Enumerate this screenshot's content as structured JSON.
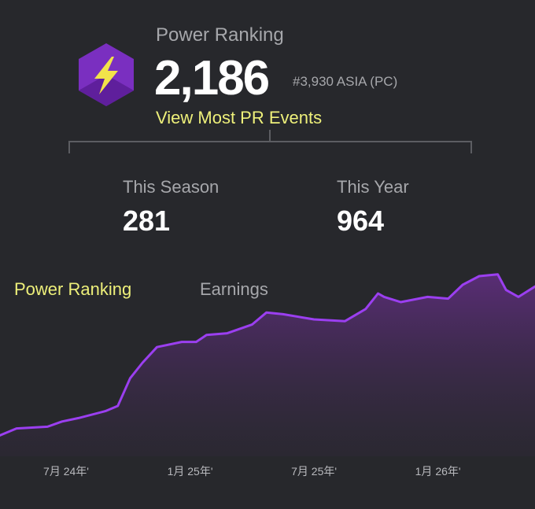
{
  "header": {
    "title": "Power Ranking",
    "score": "2,186",
    "rank": "#3,930 ASIA (PC)",
    "link": "View Most PR Events"
  },
  "stats": [
    {
      "label": "This Season",
      "value": "281"
    },
    {
      "label": "This Year",
      "value": "964"
    }
  ],
  "tabs": [
    "Power Ranking",
    "Earnings"
  ],
  "chart_data": {
    "type": "line",
    "x": [
      -3.2,
      -2.4,
      -0.9,
      -0.2,
      0.6,
      1.9,
      2.5,
      3.1,
      3.7,
      4.4,
      5.6,
      6.3,
      6.8,
      7.8,
      9.0,
      9.7,
      10.5,
      12.0,
      13.5,
      14.5,
      15.1,
      15.4,
      16.2,
      17.5,
      18.5,
      19.2,
      20.0,
      20.9,
      21.3,
      21.9,
      22.7
    ],
    "series": [
      {
        "name": "Power Ranking",
        "color": "#9b3ff0",
        "values": [
          3,
          7,
          8,
          11,
          13,
          17,
          20,
          36,
          45,
          54,
          57,
          57,
          61,
          62,
          67,
          74,
          73,
          70,
          69,
          76,
          85,
          83,
          80,
          83,
          82,
          90,
          95,
          96,
          87,
          83,
          89
        ]
      }
    ],
    "xlim": [
      -3.2,
      22.7
    ],
    "ylim": [
      0,
      100
    ],
    "xticks": [
      {
        "value": 0,
        "label": "7月 24年'"
      },
      {
        "value": 6,
        "label": "1月 25年'"
      },
      {
        "value": 12,
        "label": "7月 25年'"
      },
      {
        "value": 18,
        "label": "1月 26年'"
      }
    ]
  }
}
